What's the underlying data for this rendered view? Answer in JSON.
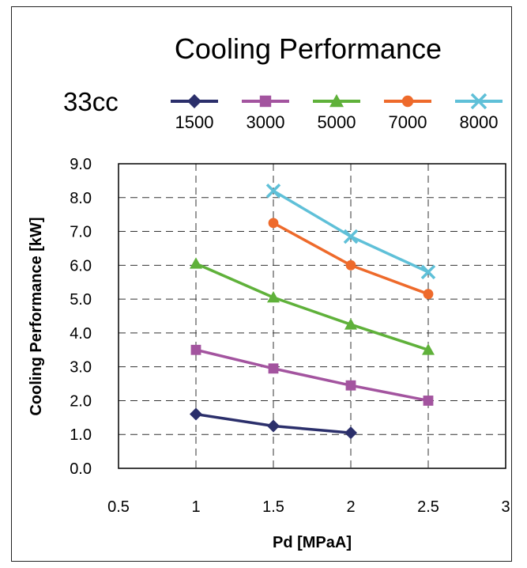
{
  "chart_data": {
    "type": "line",
    "title": "Cooling Performance",
    "subtitle": "33cc",
    "xlabel": "Pd [MPaA]",
    "ylabel": "Cooling Performance [kW]",
    "xlim": [
      0.5,
      3
    ],
    "ylim": [
      0,
      9
    ],
    "xticks": [
      "0.5",
      "1",
      "1.5",
      "2",
      "2.5",
      "3"
    ],
    "yticks": [
      "0.0",
      "1.0",
      "2.0",
      "3.0",
      "4.0",
      "5.0",
      "6.0",
      "7.0",
      "8.0",
      "9.0"
    ],
    "grid": true,
    "legend_position": "top",
    "series": [
      {
        "name": "1500",
        "color": "#2b2f6b",
        "marker": "diamond",
        "x": [
          1,
          1.5,
          2
        ],
        "y": [
          1.6,
          1.25,
          1.05
        ]
      },
      {
        "name": "3000",
        "color": "#a3549f",
        "marker": "square",
        "x": [
          1,
          1.5,
          2,
          2.5
        ],
        "y": [
          3.5,
          2.95,
          2.45,
          2.0
        ]
      },
      {
        "name": "5000",
        "color": "#5fb13a",
        "marker": "triangle",
        "x": [
          1,
          1.5,
          2,
          2.5
        ],
        "y": [
          6.05,
          5.05,
          4.25,
          3.5
        ]
      },
      {
        "name": "7000",
        "color": "#ee6a2b",
        "marker": "circle",
        "x": [
          1.5,
          2,
          2.5
        ],
        "y": [
          7.25,
          6.0,
          5.15
        ]
      },
      {
        "name": "8000",
        "color": "#5fc0d8",
        "marker": "x",
        "x": [
          1.5,
          2,
          2.5
        ],
        "y": [
          8.2,
          6.85,
          5.8
        ]
      }
    ]
  }
}
